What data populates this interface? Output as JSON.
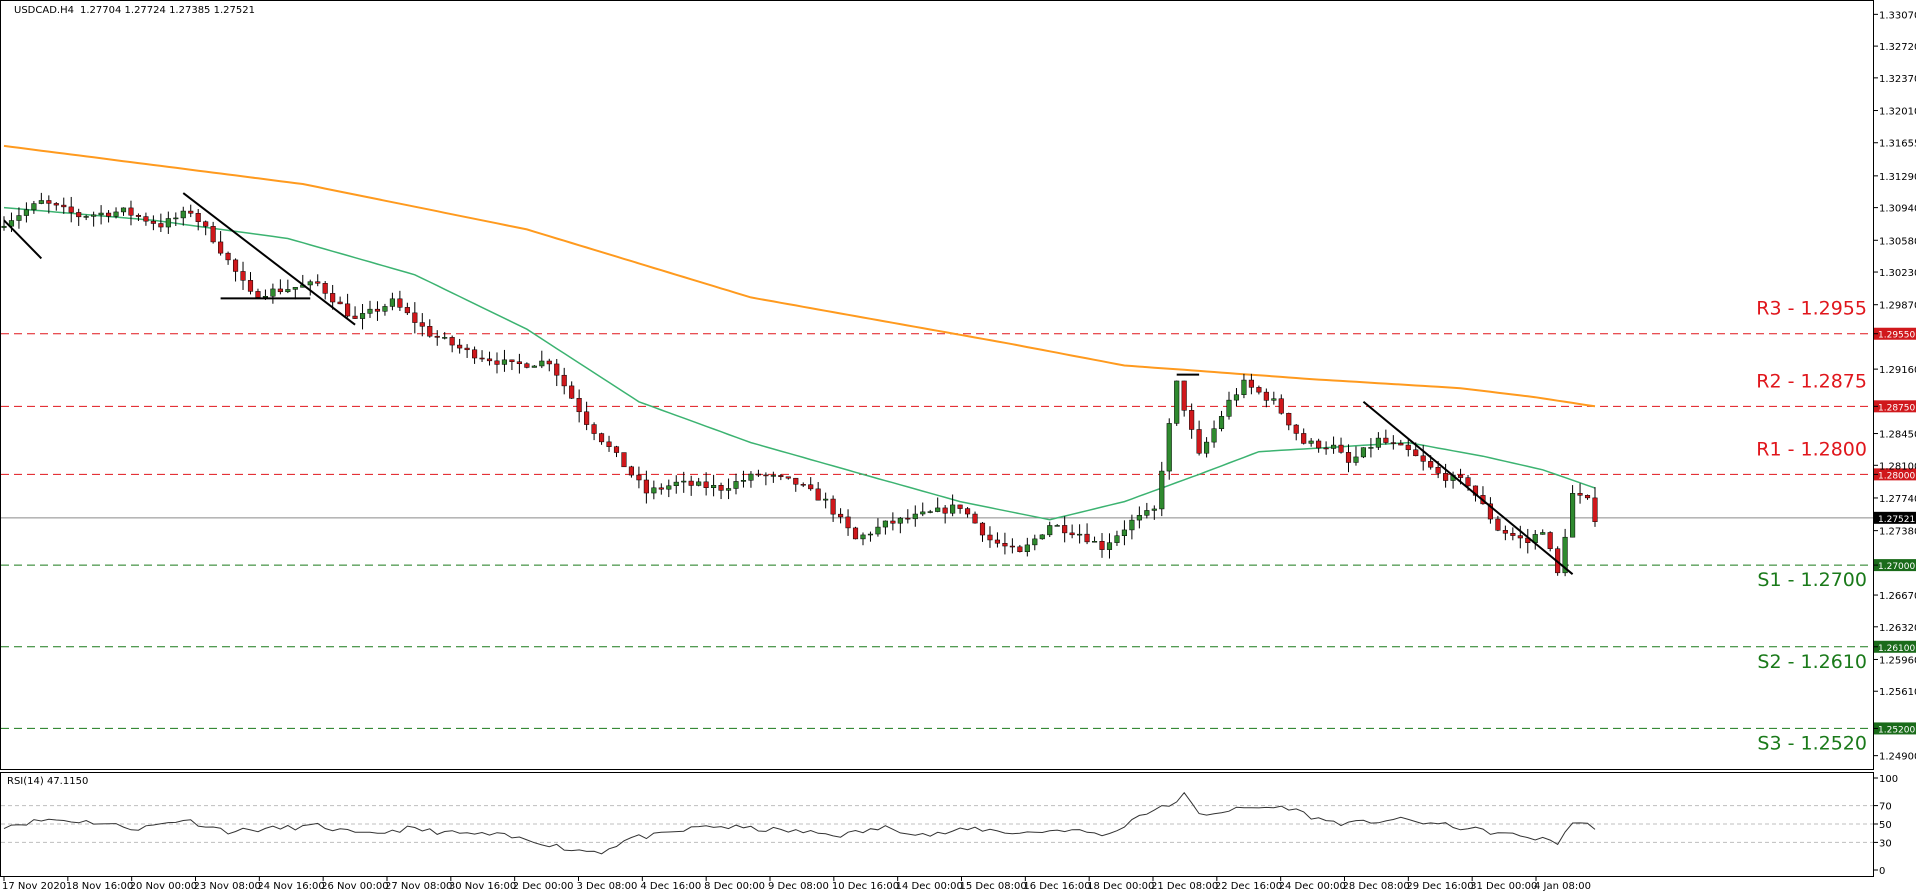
{
  "chart_data": {
    "type": "candlestick",
    "symbol_timeframe": "USDCAD.H4",
    "ohlc_header": "1.27704 1.27724 1.27385 1.27521",
    "price_ticks": [
      "1.33070",
      "1.32720",
      "1.32370",
      "1.32010",
      "1.31655",
      "1.31290",
      "1.30940",
      "1.30580",
      "1.30230",
      "1.29870",
      "1.29550",
      "1.29160",
      "1.28750",
      "1.28450",
      "1.28100",
      "1.28000",
      "1.27740",
      "1.27521",
      "1.27380",
      "1.27000",
      "1.26670",
      "1.26320",
      "1.26100",
      "1.25960",
      "1.25610",
      "1.25200",
      "1.24900"
    ],
    "price_tick_values": [
      1.3307,
      1.3272,
      1.3237,
      1.3201,
      1.31655,
      1.3129,
      1.3094,
      1.3058,
      1.3023,
      1.2987,
      1.2955,
      1.2916,
      1.2875,
      1.2845,
      1.281,
      1.28,
      1.2774,
      1.27521,
      1.2738,
      1.27,
      1.2667,
      1.2632,
      1.261,
      1.2596,
      1.2561,
      1.252,
      1.249
    ],
    "ylim": [
      1.2483,
      1.3314
    ],
    "current_price": 1.27521,
    "current_price_label": "1.27521",
    "levels": [
      {
        "name": "R3",
        "label": "R3 - 1.2955",
        "value": 1.2955,
        "tag": "1.29550",
        "color": "#e0161c",
        "dash": "red"
      },
      {
        "name": "R2",
        "label": "R2 - 1.2875",
        "value": 1.2875,
        "tag": "1.28750",
        "color": "#e0161c",
        "dash": "red"
      },
      {
        "name": "R1",
        "label": "R1 - 1.2800",
        "value": 1.28,
        "tag": "1.28000",
        "color": "#e0161c",
        "dash": "red"
      },
      {
        "name": "S1",
        "label": "S1 - 1.2700",
        "value": 1.27,
        "tag": "1.27000",
        "color": "#1a7a1a",
        "dash": "green"
      },
      {
        "name": "S2",
        "label": "S2 - 1.2610",
        "value": 1.261,
        "tag": "1.26100",
        "color": "#1a7a1a",
        "dash": "green"
      },
      {
        "name": "S3",
        "label": "S3 - 1.2520",
        "value": 1.252,
        "tag": "1.25200",
        "color": "#1a7a1a",
        "dash": "green"
      }
    ],
    "x_labels": [
      "17 Nov 2020",
      "18 Nov 16:00",
      "20 Nov 00:00",
      "23 Nov 08:00",
      "24 Nov 16:00",
      "26 Nov 00:00",
      "27 Nov 08:00",
      "30 Nov 16:00",
      "2 Dec 00:00",
      "3 Dec 08:00",
      "4 Dec 16:00",
      "8 Dec 00:00",
      "9 Dec 08:00",
      "10 Dec 16:00",
      "14 Dec 00:00",
      "15 Dec 08:00",
      "16 Dec 16:00",
      "18 Dec 00:00",
      "21 Dec 08:00",
      "22 Dec 16:00",
      "24 Dec 00:00",
      "28 Dec 08:00",
      "29 Dec 16:00",
      "31 Dec 00:00",
      "4 Jan 08:00"
    ],
    "close_anchors": [
      [
        0,
        1.3078
      ],
      [
        5,
        1.31
      ],
      [
        10,
        1.3085
      ],
      [
        16,
        1.309
      ],
      [
        21,
        1.3075
      ],
      [
        25,
        1.309
      ],
      [
        28,
        1.306
      ],
      [
        33,
        1.2998
      ],
      [
        38,
        1.3005
      ],
      [
        42,
        1.301
      ],
      [
        47,
        1.297
      ],
      [
        52,
        1.299
      ],
      [
        57,
        1.2955
      ],
      [
        62,
        1.2935
      ],
      [
        68,
        1.292
      ],
      [
        73,
        1.2925
      ],
      [
        78,
        1.2858
      ],
      [
        83,
        1.281
      ],
      [
        86,
        1.278
      ],
      [
        90,
        1.279
      ],
      [
        96,
        1.2785
      ],
      [
        101,
        1.28
      ],
      [
        106,
        1.279
      ],
      [
        110,
        1.277
      ],
      [
        114,
        1.2728
      ],
      [
        118,
        1.2745
      ],
      [
        123,
        1.2755
      ],
      [
        128,
        1.2765
      ],
      [
        132,
        1.2728
      ],
      [
        136,
        1.2712
      ],
      [
        140,
        1.2745
      ],
      [
        144,
        1.2735
      ],
      [
        147,
        1.272
      ],
      [
        151,
        1.2748
      ],
      [
        154,
        1.276
      ],
      [
        157,
        1.29
      ],
      [
        160,
        1.282
      ],
      [
        164,
        1.288
      ],
      [
        166,
        1.29
      ],
      [
        170,
        1.288
      ],
      [
        174,
        1.2835
      ],
      [
        178,
        1.283
      ],
      [
        180,
        1.2812
      ],
      [
        184,
        1.2838
      ],
      [
        188,
        1.2825
      ],
      [
        192,
        1.28
      ],
      [
        196,
        1.279
      ],
      [
        200,
        1.274
      ],
      [
        204,
        1.2725
      ],
      [
        206,
        1.274
      ],
      [
        208,
        1.269
      ],
      [
        210,
        1.2778
      ],
      [
        212,
        1.277
      ],
      [
        213,
        1.2752
      ]
    ],
    "ma_orange": [
      [
        0,
        1.3162
      ],
      [
        40,
        1.312
      ],
      [
        70,
        1.307
      ],
      [
        100,
        1.2995
      ],
      [
        134,
        1.2945
      ],
      [
        150,
        1.292
      ],
      [
        175,
        1.2905
      ],
      [
        195,
        1.2895
      ],
      [
        205,
        1.2885
      ],
      [
        213,
        1.2875
      ]
    ],
    "ma_green": [
      [
        0,
        1.3094
      ],
      [
        20,
        1.308
      ],
      [
        38,
        1.306
      ],
      [
        55,
        1.302
      ],
      [
        70,
        1.296
      ],
      [
        85,
        1.288
      ],
      [
        100,
        1.2835
      ],
      [
        115,
        1.28
      ],
      [
        128,
        1.277
      ],
      [
        140,
        1.275
      ],
      [
        150,
        1.277
      ],
      [
        160,
        1.28
      ],
      [
        168,
        1.2825
      ],
      [
        178,
        1.283
      ],
      [
        188,
        1.2835
      ],
      [
        198,
        1.282
      ],
      [
        206,
        1.2805
      ],
      [
        213,
        1.2785
      ]
    ],
    "trendlines": [
      {
        "from": [
          0,
          1.308
        ],
        "to": [
          5,
          1.3038
        ],
        "color": "#000000"
      },
      {
        "from": [
          24,
          1.311
        ],
        "to": [
          47,
          1.2965
        ],
        "color": "#000000"
      },
      {
        "from": [
          29,
          1.2994
        ],
        "to": [
          41,
          1.2994
        ],
        "color": "#000000"
      },
      {
        "from": [
          157,
          1.291
        ],
        "to": [
          160,
          1.291
        ],
        "color": "#000000"
      },
      {
        "from": [
          182,
          1.288
        ],
        "to": [
          210,
          1.269
        ],
        "color": "#000000"
      }
    ],
    "rsi": {
      "label": "RSI(14) 47.1150",
      "value": 47.115,
      "ticks": [
        "100",
        "70",
        "50",
        "30",
        "0"
      ],
      "tick_values": [
        100,
        70,
        50,
        30,
        0
      ],
      "series_anchors": [
        [
          0,
          48
        ],
        [
          6,
          55
        ],
        [
          12,
          52
        ],
        [
          18,
          45
        ],
        [
          24,
          55
        ],
        [
          30,
          42
        ],
        [
          36,
          45
        ],
        [
          42,
          48
        ],
        [
          48,
          38
        ],
        [
          54,
          45
        ],
        [
          60,
          40
        ],
        [
          66,
          38
        ],
        [
          72,
          30
        ],
        [
          76,
          22
        ],
        [
          80,
          20
        ],
        [
          84,
          35
        ],
        [
          88,
          38
        ],
        [
          94,
          48
        ],
        [
          100,
          45
        ],
        [
          106,
          42
        ],
        [
          112,
          38
        ],
        [
          118,
          46
        ],
        [
          124,
          38
        ],
        [
          130,
          45
        ],
        [
          136,
          40
        ],
        [
          142,
          44
        ],
        [
          148,
          38
        ],
        [
          152,
          60
        ],
        [
          156,
          70
        ],
        [
          158,
          82
        ],
        [
          160,
          60
        ],
        [
          164,
          65
        ],
        [
          168,
          68
        ],
        [
          172,
          68
        ],
        [
          176,
          55
        ],
        [
          180,
          50
        ],
        [
          186,
          55
        ],
        [
          190,
          52
        ],
        [
          196,
          45
        ],
        [
          200,
          40
        ],
        [
          204,
          36
        ],
        [
          208,
          30
        ],
        [
          210,
          52
        ],
        [
          213,
          47
        ]
      ]
    },
    "candle_count": 214,
    "colors": {
      "bull": "#2f8a2f",
      "bear": "#d0181c",
      "ma_orange": "#ff9a1e",
      "ma_green": "#3cb371",
      "rsi_line": "#333333",
      "grid": "#bfbfbf"
    }
  }
}
